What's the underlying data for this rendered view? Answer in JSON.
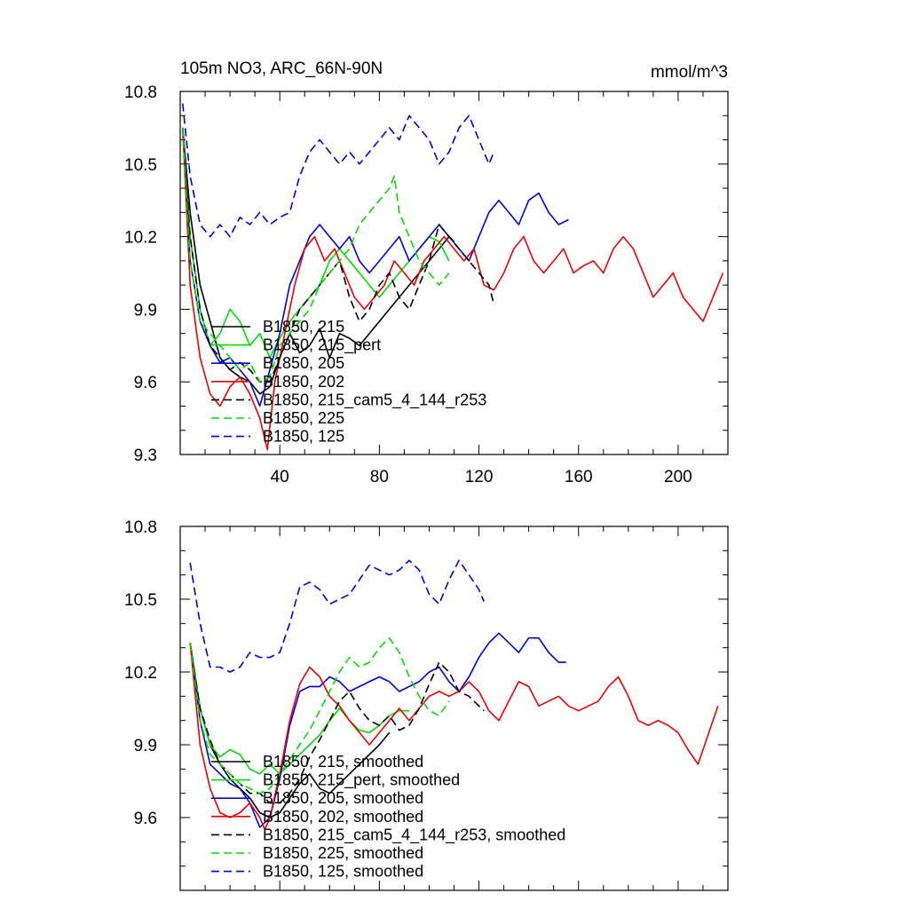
{
  "title_left": "105m NO3, ARC_66N-90N",
  "title_right": "mmol/m^3",
  "chart_data": [
    {
      "type": "line",
      "xlim": [
        0,
        220
      ],
      "ylim": [
        9.3,
        10.8
      ],
      "yticks": [
        9.3,
        9.6,
        9.9,
        10.2,
        10.5,
        10.8
      ],
      "ytick_labels": [
        "9.3",
        "9.6",
        "9.9",
        "10.2",
        "10.5",
        "10.8"
      ],
      "xticks": [
        40,
        80,
        120,
        160,
        200
      ],
      "xtick_labels": [
        "40",
        "80",
        "120",
        "160",
        "200"
      ],
      "series": [
        {
          "name": "B1850, 215",
          "color": "#000000",
          "dash": "solid",
          "x": [
            1,
            4,
            8,
            12,
            16,
            20,
            24,
            28,
            32,
            36,
            40,
            44,
            48,
            52,
            56,
            60,
            64,
            68,
            72,
            76,
            80,
            84,
            88,
            92,
            96,
            100,
            104,
            108,
            110
          ],
          "y": [
            10.65,
            10.3,
            10.0,
            9.85,
            9.7,
            9.65,
            9.62,
            9.6,
            9.55,
            9.58,
            9.7,
            9.8,
            9.72,
            9.75,
            9.82,
            9.7,
            9.8,
            9.78,
            9.75,
            9.8,
            9.85,
            9.9,
            9.95,
            10.0,
            10.05,
            10.1,
            10.15,
            10.2,
            10.18
          ]
        },
        {
          "name": "B1850, 215_pert",
          "color": "#00dd00",
          "dash": "solid",
          "x": [
            1,
            4,
            8,
            12,
            16,
            20,
            24,
            28,
            32,
            36,
            40,
            44,
            48,
            52,
            56,
            60,
            64,
            68,
            72,
            76,
            80,
            84,
            88,
            92,
            96,
            100,
            104,
            108
          ],
          "y": [
            10.65,
            10.2,
            9.9,
            9.75,
            9.8,
            9.9,
            9.85,
            9.75,
            9.8,
            9.7,
            9.78,
            9.85,
            9.9,
            9.95,
            10.0,
            10.1,
            10.15,
            10.1,
            10.05,
            10.0,
            9.95,
            10.0,
            10.05,
            10.1,
            10.15,
            10.2,
            10.18,
            10.1
          ]
        },
        {
          "name": "B1850, 205",
          "color": "#0000dd",
          "dash": "solid",
          "x": [
            1,
            4,
            8,
            12,
            16,
            20,
            24,
            28,
            32,
            36,
            40,
            44,
            48,
            52,
            56,
            60,
            64,
            68,
            72,
            76,
            80,
            84,
            88,
            92,
            96,
            100,
            104,
            108,
            112,
            116,
            120,
            124,
            128,
            132,
            136,
            140,
            144,
            148,
            152,
            156
          ],
          "y": [
            10.65,
            10.1,
            9.85,
            9.75,
            9.68,
            9.7,
            9.65,
            9.6,
            9.5,
            9.65,
            9.8,
            10.0,
            10.1,
            10.2,
            10.25,
            10.2,
            10.15,
            10.2,
            10.1,
            10.05,
            10.1,
            10.15,
            10.2,
            10.1,
            10.15,
            10.2,
            10.25,
            10.2,
            10.15,
            10.1,
            10.2,
            10.3,
            10.35,
            10.3,
            10.25,
            10.35,
            10.38,
            10.3,
            10.25,
            10.27
          ]
        },
        {
          "name": "B1850, 202",
          "color": "#ee0000",
          "dash": "solid",
          "x": [
            1,
            4,
            8,
            12,
            16,
            20,
            24,
            28,
            32,
            35,
            38,
            42,
            46,
            50,
            54,
            58,
            62,
            66,
            70,
            74,
            78,
            82,
            86,
            90,
            94,
            98,
            102,
            106,
            110,
            114,
            118,
            122,
            126,
            130,
            134,
            138,
            142,
            146,
            150,
            154,
            158,
            162,
            166,
            170,
            174,
            178,
            182,
            186,
            190,
            194,
            198,
            202,
            206,
            210,
            214,
            218
          ],
          "y": [
            10.65,
            10.0,
            9.7,
            9.55,
            9.5,
            9.58,
            9.62,
            9.55,
            9.45,
            9.32,
            9.6,
            9.8,
            10.0,
            10.15,
            10.2,
            10.1,
            10.15,
            10.05,
            9.95,
            9.9,
            9.95,
            10.0,
            10.1,
            10.05,
            10.0,
            10.1,
            10.15,
            10.2,
            10.15,
            10.1,
            10.15,
            10.0,
            9.98,
            10.05,
            10.15,
            10.2,
            10.1,
            10.05,
            10.1,
            10.15,
            10.05,
            10.08,
            10.1,
            10.05,
            10.15,
            10.2,
            10.15,
            10.05,
            9.95,
            10.0,
            10.05,
            9.95,
            9.9,
            9.85,
            9.95,
            10.05
          ]
        },
        {
          "name": "B1850, 215_cam5_4_144_r253",
          "color": "#000000",
          "dash": "dashed",
          "x": [
            1,
            4,
            8,
            12,
            16,
            20,
            24,
            28,
            32,
            36,
            40,
            44,
            48,
            52,
            56,
            60,
            64,
            68,
            72,
            76,
            80,
            84,
            88,
            92,
            96,
            100,
            104,
            108,
            112,
            116,
            120,
            124,
            126
          ],
          "y": [
            10.65,
            10.2,
            9.9,
            9.75,
            9.7,
            9.65,
            9.68,
            9.65,
            9.6,
            9.6,
            9.7,
            9.8,
            9.9,
            9.95,
            10.0,
            10.05,
            10.1,
            9.95,
            9.85,
            9.9,
            10.0,
            10.05,
            9.95,
            9.9,
            10.0,
            10.1,
            10.25,
            10.2,
            10.15,
            10.1,
            10.05,
            10.0,
            9.92
          ]
        },
        {
          "name": "B1850, 225",
          "color": "#00dd00",
          "dash": "dashed",
          "x": [
            1,
            4,
            8,
            12,
            16,
            20,
            24,
            28,
            32,
            36,
            40,
            44,
            48,
            52,
            56,
            60,
            64,
            68,
            72,
            76,
            80,
            84,
            86,
            88,
            92,
            96,
            100,
            104,
            108
          ],
          "y": [
            10.65,
            10.1,
            9.85,
            9.8,
            9.75,
            9.7,
            9.65,
            9.68,
            9.6,
            9.62,
            9.75,
            9.8,
            9.85,
            9.9,
            10.0,
            10.05,
            10.1,
            10.15,
            10.25,
            10.3,
            10.35,
            10.4,
            10.45,
            10.3,
            10.2,
            10.1,
            10.05,
            10.0,
            10.05
          ]
        },
        {
          "name": "B1850, 125",
          "color": "#0000dd",
          "dash": "dashed",
          "x": [
            1,
            4,
            8,
            12,
            16,
            20,
            24,
            28,
            32,
            36,
            40,
            44,
            48,
            52,
            56,
            60,
            64,
            68,
            72,
            76,
            80,
            84,
            88,
            92,
            96,
            100,
            104,
            108,
            112,
            116,
            120,
            124,
            126
          ],
          "y": [
            10.75,
            10.45,
            10.25,
            10.2,
            10.25,
            10.2,
            10.28,
            10.25,
            10.3,
            10.25,
            10.28,
            10.3,
            10.45,
            10.55,
            10.6,
            10.55,
            10.5,
            10.55,
            10.5,
            10.55,
            10.6,
            10.65,
            10.6,
            10.7,
            10.65,
            10.6,
            10.5,
            10.55,
            10.65,
            10.7,
            10.6,
            10.5,
            10.55
          ]
        }
      ]
    },
    {
      "type": "line",
      "xlim": [
        0,
        220
      ],
      "ylim": [
        9.3,
        10.8
      ],
      "yticks": [
        9.6,
        9.9,
        10.2,
        10.5,
        10.8
      ],
      "ytick_labels": [
        "9.6",
        "9.9",
        "10.2",
        "10.5",
        "10.8"
      ],
      "xticks": [
        40,
        80,
        120,
        160,
        200
      ],
      "xtick_labels": [],
      "series": [
        {
          "name": "B1850, 215, smoothed",
          "color": "#000000",
          "dash": "solid",
          "x": [
            4,
            8,
            12,
            16,
            20,
            24,
            28,
            32,
            36,
            40,
            44,
            48,
            52,
            56,
            60,
            64,
            68,
            72,
            76,
            80,
            84
          ],
          "y": [
            10.32,
            10.05,
            9.9,
            9.82,
            9.76,
            9.72,
            9.68,
            9.62,
            9.6,
            9.62,
            9.68,
            9.74,
            9.78,
            9.72,
            9.7,
            9.74,
            9.78,
            9.82,
            9.86,
            9.9,
            9.95
          ]
        },
        {
          "name": "B1850, 215_pert, smoothed",
          "color": "#00dd00",
          "dash": "solid",
          "x": [
            4,
            8,
            12,
            16,
            20,
            24,
            28,
            32,
            36,
            40,
            44,
            48,
            52,
            56,
            60,
            64,
            68,
            72,
            76,
            80,
            84,
            88,
            92
          ],
          "y": [
            10.32,
            10.05,
            9.9,
            9.85,
            9.88,
            9.86,
            9.8,
            9.78,
            9.82,
            9.78,
            9.82,
            9.86,
            9.9,
            9.94,
            10.0,
            10.05,
            10.0,
            9.96,
            9.95,
            9.98,
            10.02,
            10.04,
            10.04
          ]
        },
        {
          "name": "B1850, 205, smoothed",
          "color": "#0000dd",
          "dash": "solid",
          "x": [
            4,
            8,
            12,
            16,
            20,
            24,
            28,
            32,
            36,
            40,
            44,
            48,
            52,
            56,
            60,
            64,
            68,
            72,
            76,
            80,
            84,
            88,
            92,
            96,
            100,
            104,
            108,
            112,
            116,
            120,
            124,
            128,
            132,
            136,
            140,
            144,
            148,
            152,
            155
          ],
          "y": [
            10.32,
            10.0,
            9.82,
            9.78,
            9.74,
            9.72,
            9.66,
            9.56,
            9.6,
            9.76,
            9.98,
            10.12,
            10.14,
            10.14,
            10.18,
            10.16,
            10.12,
            10.14,
            10.16,
            10.18,
            10.16,
            10.12,
            10.14,
            10.16,
            10.2,
            10.22,
            10.16,
            10.12,
            10.18,
            10.26,
            10.32,
            10.36,
            10.32,
            10.28,
            10.34,
            10.34,
            10.28,
            10.24,
            10.24
          ]
        },
        {
          "name": "B1850, 202, smoothed",
          "color": "#ee0000",
          "dash": "solid",
          "x": [
            4,
            8,
            12,
            16,
            20,
            24,
            28,
            32,
            34,
            36,
            40,
            44,
            48,
            52,
            56,
            60,
            64,
            68,
            72,
            76,
            80,
            84,
            88,
            92,
            96,
            100,
            104,
            108,
            112,
            116,
            120,
            124,
            128,
            132,
            136,
            140,
            144,
            148,
            152,
            156,
            160,
            164,
            168,
            172,
            176,
            180,
            184,
            188,
            192,
            196,
            200,
            204,
            208,
            212,
            216
          ],
          "y": [
            10.32,
            9.9,
            9.72,
            9.62,
            9.6,
            9.62,
            9.66,
            9.6,
            9.55,
            9.6,
            9.78,
            10.0,
            10.15,
            10.22,
            10.18,
            10.1,
            10.06,
            10.0,
            9.95,
            9.9,
            9.95,
            10.0,
            10.05,
            10.0,
            10.05,
            10.1,
            10.12,
            10.1,
            10.12,
            10.16,
            10.12,
            10.04,
            10.0,
            10.08,
            10.16,
            10.14,
            10.06,
            10.08,
            10.1,
            10.06,
            10.04,
            10.06,
            10.08,
            10.14,
            10.18,
            10.1,
            10.0,
            9.98,
            10.0,
            9.98,
            9.95,
            9.88,
            9.82,
            9.94,
            10.06
          ]
        },
        {
          "name": "B1850, 215_cam5_4_144_r253, smoothed",
          "color": "#000000",
          "dash": "dashed",
          "x": [
            4,
            8,
            12,
            16,
            20,
            24,
            28,
            32,
            36,
            40,
            44,
            48,
            52,
            56,
            60,
            64,
            68,
            72,
            76,
            80,
            84,
            88,
            92,
            96,
            100,
            104,
            108,
            112,
            116,
            120,
            122
          ],
          "y": [
            10.32,
            10.05,
            9.92,
            9.82,
            9.78,
            9.74,
            9.7,
            9.7,
            9.66,
            9.66,
            9.7,
            9.76,
            9.85,
            9.92,
            10.0,
            10.08,
            10.12,
            10.05,
            10.0,
            9.98,
            10.02,
            9.96,
            9.98,
            10.05,
            10.15,
            10.24,
            10.2,
            10.12,
            10.1,
            10.06,
            10.04
          ]
        },
        {
          "name": "B1850, 225, smoothed",
          "color": "#00dd00",
          "dash": "dashed",
          "x": [
            4,
            8,
            12,
            16,
            20,
            24,
            28,
            32,
            36,
            40,
            44,
            48,
            52,
            56,
            60,
            64,
            68,
            72,
            76,
            80,
            84,
            88,
            92,
            96,
            100,
            104,
            108
          ],
          "y": [
            10.32,
            10.0,
            9.86,
            9.82,
            9.78,
            9.74,
            9.72,
            9.7,
            9.72,
            9.78,
            9.84,
            9.9,
            9.96,
            10.04,
            10.12,
            10.2,
            10.26,
            10.22,
            10.24,
            10.3,
            10.34,
            10.28,
            10.18,
            10.1,
            10.04,
            10.02,
            10.08
          ]
        },
        {
          "name": "B1850, 125, smoothed",
          "color": "#0000dd",
          "dash": "dashed",
          "x": [
            4,
            8,
            12,
            16,
            20,
            24,
            28,
            32,
            36,
            40,
            44,
            48,
            52,
            56,
            60,
            64,
            68,
            72,
            76,
            80,
            84,
            88,
            92,
            96,
            100,
            104,
            108,
            112,
            116,
            120,
            122
          ],
          "y": [
            10.65,
            10.4,
            10.22,
            10.22,
            10.2,
            10.22,
            10.28,
            10.26,
            10.26,
            10.28,
            10.4,
            10.55,
            10.57,
            10.54,
            10.48,
            10.5,
            10.52,
            10.58,
            10.64,
            10.62,
            10.6,
            10.62,
            10.66,
            10.62,
            10.52,
            10.48,
            10.58,
            10.66,
            10.6,
            10.54,
            10.49
          ]
        }
      ]
    }
  ]
}
